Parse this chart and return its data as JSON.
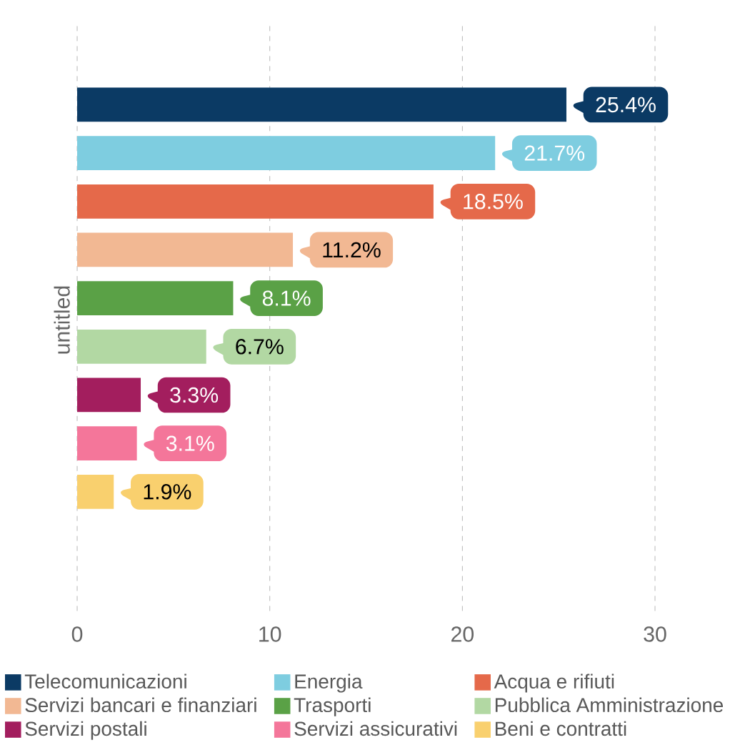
{
  "chart_data": {
    "type": "bar",
    "orientation": "horizontal",
    "ylabel": "untitled",
    "categories": [
      null
    ],
    "series": [
      {
        "name": "Telecomunicazioni",
        "color": "#0b3a64",
        "values": [
          25.4
        ],
        "value_labels": [
          "25.4%"
        ]
      },
      {
        "name": "Energia",
        "color": "#7ecde0",
        "values": [
          21.7
        ],
        "value_labels": [
          "21.7%"
        ]
      },
      {
        "name": "Acqua e rifiuti",
        "color": "#e5694a",
        "values": [
          18.5
        ],
        "value_labels": [
          "18.5%"
        ]
      },
      {
        "name": "Servizi bancari e finanziari",
        "color": "#f2b893",
        "values": [
          11.2
        ],
        "value_labels": [
          "11.2%"
        ]
      },
      {
        "name": "Trasporti",
        "color": "#5aa146",
        "values": [
          8.1
        ],
        "value_labels": [
          "8.1%"
        ]
      },
      {
        "name": "Pubblica Amministrazione",
        "color": "#b2d8a3",
        "values": [
          6.7
        ],
        "value_labels": [
          "6.7%"
        ]
      },
      {
        "name": "Servizi postali",
        "color": "#a31e5e",
        "values": [
          3.3
        ],
        "value_labels": [
          "3.3%"
        ]
      },
      {
        "name": "Servizi assicurativi",
        "color": "#f4769a",
        "values": [
          3.1
        ],
        "value_labels": [
          "3.1%"
        ]
      },
      {
        "name": "Beni e contratti",
        "color": "#f9d06e",
        "values": [
          1.9
        ],
        "value_labels": [
          "1.9%"
        ]
      }
    ],
    "xlim": [
      0,
      30
    ],
    "xticks": [
      0,
      10,
      20,
      30
    ],
    "grid": "x",
    "legend": "bottom"
  }
}
